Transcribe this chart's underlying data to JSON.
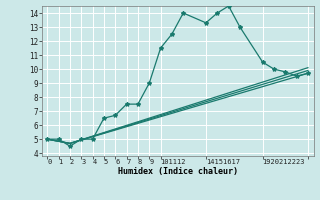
{
  "title": "",
  "xlabel": "Humidex (Indice chaleur)",
  "bg_color": "#cce8e8",
  "line_color": "#1a7a6e",
  "grid_color": "#ffffff",
  "xlim": [
    -0.5,
    23.5
  ],
  "ylim": [
    3.8,
    14.5
  ],
  "yticks": [
    4,
    5,
    6,
    7,
    8,
    9,
    10,
    11,
    12,
    13,
    14
  ],
  "xtick_positions": [
    0,
    1,
    2,
    3,
    4,
    5,
    6,
    7,
    8,
    9,
    10,
    14,
    19,
    23
  ],
  "xtick_labels": [
    "0",
    "1",
    "2",
    "3",
    "4",
    "5",
    "6",
    "7",
    "8",
    "9",
    "101112",
    "14151617",
    "1920212223",
    ""
  ],
  "line1_x": [
    0,
    1,
    2,
    3,
    4,
    5,
    6,
    7,
    8,
    9,
    10,
    11,
    12,
    14,
    15,
    16,
    17,
    19,
    20,
    21,
    22,
    23
  ],
  "line1_y": [
    5.0,
    5.0,
    4.5,
    5.0,
    5.0,
    6.5,
    6.7,
    7.5,
    7.5,
    9.0,
    11.5,
    12.5,
    14.0,
    13.3,
    14.0,
    14.5,
    13.0,
    10.5,
    10.0,
    9.8,
    9.5,
    9.7
  ],
  "line2_x": [
    0,
    2,
    23
  ],
  "line2_y": [
    5.0,
    4.7,
    9.7
  ],
  "line3_x": [
    0,
    2,
    23
  ],
  "line3_y": [
    5.0,
    4.7,
    9.9
  ],
  "line4_x": [
    0,
    2,
    23
  ],
  "line4_y": [
    5.0,
    4.7,
    10.1
  ]
}
